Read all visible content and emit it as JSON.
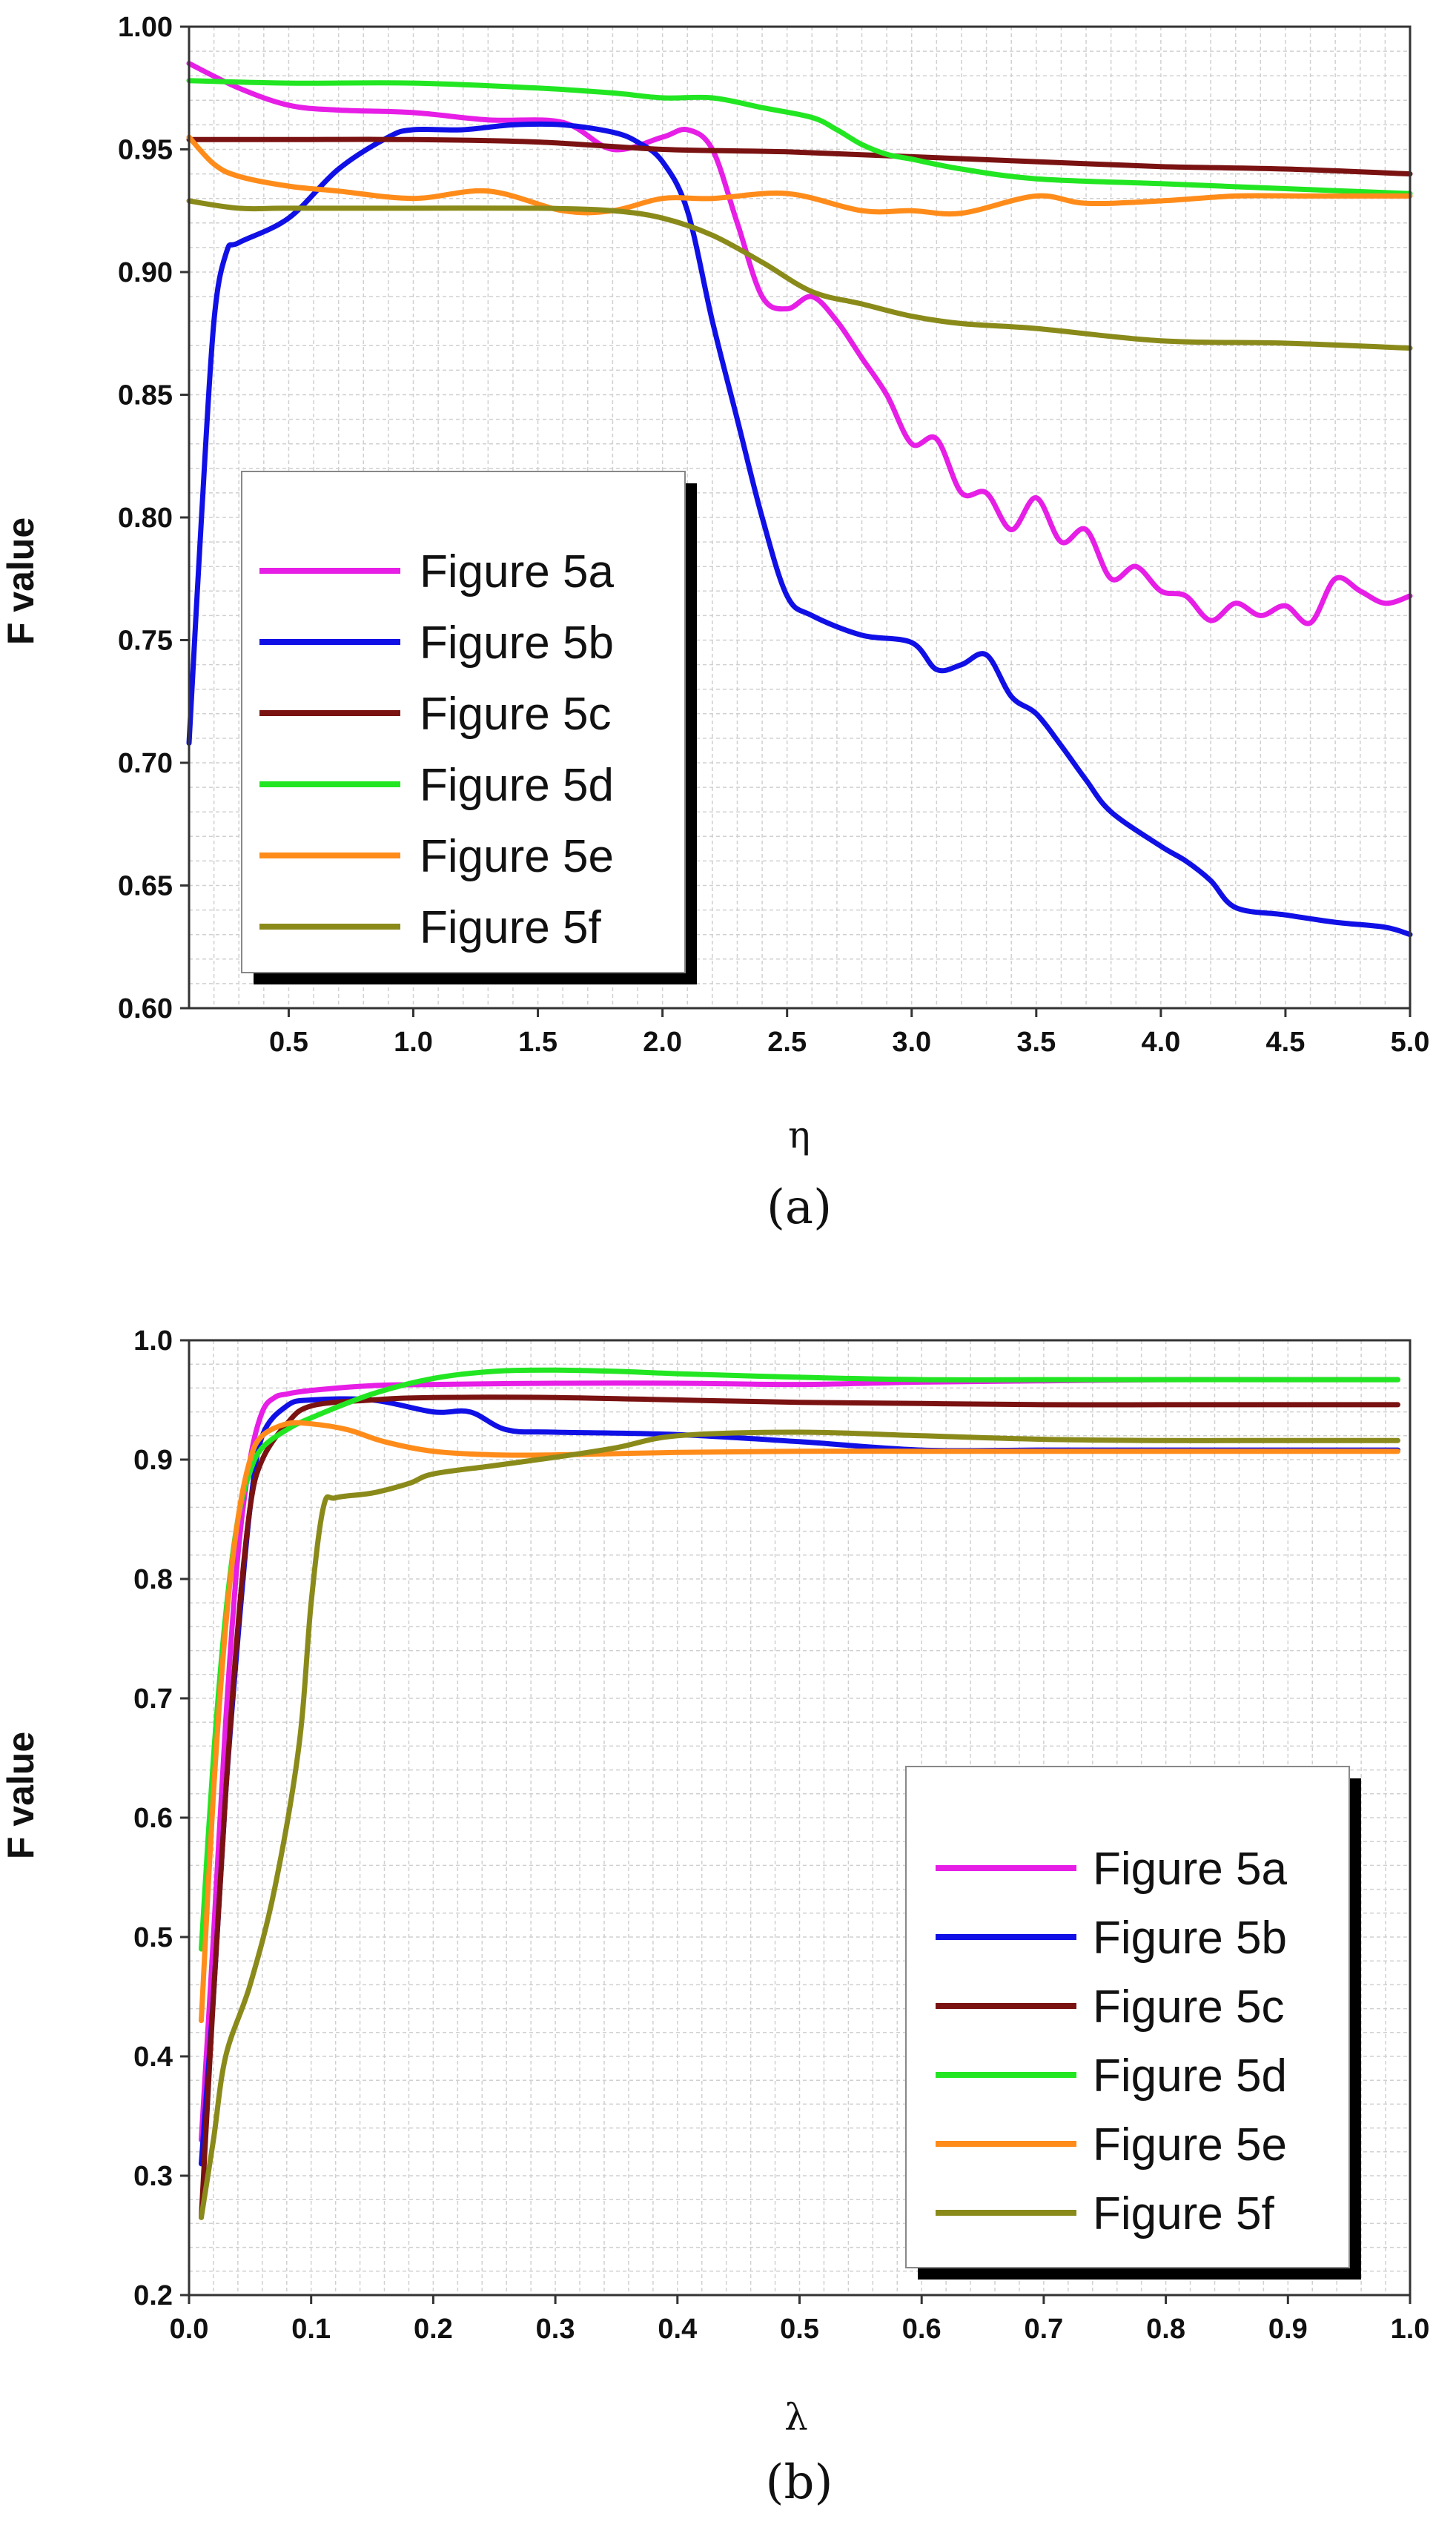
{
  "chart_data": [
    {
      "type": "line",
      "caption": "(a)",
      "xlabel": "η",
      "ylabel": "F value",
      "xlim": [
        0.1,
        5.0
      ],
      "ylim": [
        0.6,
        1.0
      ],
      "xticks": [
        0.5,
        1.0,
        1.5,
        2.0,
        2.5,
        3.0,
        3.5,
        4.0,
        4.5,
        5.0
      ],
      "xtick_labels": [
        "0.5",
        "1.0",
        "1.5",
        "2.0",
        "2.5",
        "3.0",
        "3.5",
        "4.0",
        "4.5",
        "5.0"
      ],
      "yticks": [
        0.6,
        0.65,
        0.7,
        0.75,
        0.8,
        0.85,
        0.9,
        0.95,
        1.0
      ],
      "ytick_labels": [
        "0.60",
        "0.65",
        "0.70",
        "0.75",
        "0.80",
        "0.85",
        "0.90",
        "0.95",
        "1.00"
      ],
      "grid": true,
      "legend_position": "center-left",
      "series": [
        {
          "name": "Figure 5a",
          "color": "#e61ee6",
          "x": [
            0.1,
            0.3,
            0.5,
            0.7,
            1.0,
            1.3,
            1.6,
            1.8,
            2.0,
            2.1,
            2.2,
            2.3,
            2.4,
            2.5,
            2.6,
            2.7,
            2.8,
            2.9,
            3.0,
            3.1,
            3.2,
            3.3,
            3.4,
            3.5,
            3.6,
            3.7,
            3.8,
            3.9,
            4.0,
            4.1,
            4.2,
            4.3,
            4.4,
            4.5,
            4.6,
            4.7,
            4.8,
            4.9,
            5.0
          ],
          "y": [
            0.985,
            0.975,
            0.968,
            0.966,
            0.965,
            0.962,
            0.961,
            0.95,
            0.955,
            0.958,
            0.95,
            0.92,
            0.89,
            0.885,
            0.89,
            0.88,
            0.865,
            0.85,
            0.83,
            0.832,
            0.81,
            0.81,
            0.795,
            0.808,
            0.79,
            0.795,
            0.775,
            0.78,
            0.77,
            0.768,
            0.758,
            0.765,
            0.76,
            0.764,
            0.757,
            0.775,
            0.77,
            0.765,
            0.768
          ]
        },
        {
          "name": "Figure 5b",
          "color": "#1010e6",
          "x": [
            0.1,
            0.15,
            0.2,
            0.25,
            0.3,
            0.5,
            0.7,
            0.9,
            1.0,
            1.2,
            1.4,
            1.6,
            1.8,
            1.9,
            2.0,
            2.1,
            2.2,
            2.3,
            2.4,
            2.5,
            2.6,
            2.8,
            3.0,
            3.1,
            3.2,
            3.3,
            3.4,
            3.5,
            3.6,
            3.7,
            3.8,
            4.0,
            4.1,
            4.2,
            4.3,
            4.5,
            4.7,
            4.9,
            5.0
          ],
          "y": [
            0.708,
            0.8,
            0.88,
            0.908,
            0.912,
            0.922,
            0.942,
            0.955,
            0.958,
            0.958,
            0.96,
            0.96,
            0.957,
            0.953,
            0.945,
            0.925,
            0.88,
            0.84,
            0.8,
            0.768,
            0.76,
            0.752,
            0.749,
            0.738,
            0.74,
            0.744,
            0.727,
            0.72,
            0.707,
            0.693,
            0.68,
            0.666,
            0.66,
            0.652,
            0.641,
            0.638,
            0.635,
            0.633,
            0.63
          ]
        },
        {
          "name": "Figure 5c",
          "color": "#7a1212",
          "x": [
            0.1,
            0.5,
            1.0,
            1.5,
            2.0,
            2.5,
            3.0,
            3.5,
            4.0,
            4.5,
            5.0
          ],
          "y": [
            0.954,
            0.954,
            0.954,
            0.953,
            0.95,
            0.949,
            0.947,
            0.945,
            0.943,
            0.942,
            0.94
          ]
        },
        {
          "name": "Figure 5d",
          "color": "#22e622",
          "x": [
            0.1,
            0.5,
            1.0,
            1.5,
            1.8,
            2.0,
            2.2,
            2.4,
            2.6,
            2.7,
            2.8,
            2.9,
            3.0,
            3.2,
            3.5,
            4.0,
            4.5,
            5.0
          ],
          "y": [
            0.978,
            0.977,
            0.977,
            0.975,
            0.973,
            0.971,
            0.971,
            0.967,
            0.963,
            0.958,
            0.952,
            0.948,
            0.946,
            0.942,
            0.938,
            0.936,
            0.934,
            0.932
          ]
        },
        {
          "name": "Figure 5e",
          "color": "#ff8c1a",
          "x": [
            0.1,
            0.2,
            0.3,
            0.5,
            0.7,
            1.0,
            1.3,
            1.6,
            1.8,
            2.0,
            2.2,
            2.5,
            2.8,
            3.0,
            3.2,
            3.5,
            3.7,
            4.0,
            4.3,
            4.6,
            5.0
          ],
          "y": [
            0.955,
            0.944,
            0.939,
            0.935,
            0.933,
            0.93,
            0.933,
            0.925,
            0.925,
            0.93,
            0.93,
            0.932,
            0.925,
            0.925,
            0.924,
            0.931,
            0.928,
            0.929,
            0.931,
            0.931,
            0.931
          ]
        },
        {
          "name": "Figure 5f",
          "color": "#8a8a1a",
          "x": [
            0.1,
            0.3,
            0.5,
            1.0,
            1.5,
            1.8,
            2.0,
            2.2,
            2.4,
            2.6,
            2.8,
            3.0,
            3.2,
            3.5,
            4.0,
            4.5,
            5.0
          ],
          "y": [
            0.929,
            0.926,
            0.926,
            0.926,
            0.926,
            0.925,
            0.922,
            0.915,
            0.904,
            0.892,
            0.887,
            0.882,
            0.879,
            0.877,
            0.872,
            0.871,
            0.869
          ]
        }
      ]
    },
    {
      "type": "line",
      "caption": "(b)",
      "xlabel": "λ",
      "ylabel": "F value",
      "xlim": [
        0.0,
        1.0
      ],
      "ylim": [
        0.2,
        1.0
      ],
      "xticks": [
        0.0,
        0.1,
        0.2,
        0.3,
        0.4,
        0.5,
        0.6,
        0.7,
        0.8,
        0.9,
        1.0
      ],
      "xtick_labels": [
        "0.0",
        "0.1",
        "0.2",
        "0.3",
        "0.4",
        "0.5",
        "0.6",
        "0.7",
        "0.8",
        "0.9",
        "1.0"
      ],
      "yticks": [
        0.2,
        0.3,
        0.4,
        0.5,
        0.6,
        0.7,
        0.8,
        0.9,
        1.0
      ],
      "ytick_labels": [
        "0.2",
        "0.3",
        "0.4",
        "0.5",
        "0.6",
        "0.7",
        "0.8",
        "0.9",
        "1.0"
      ],
      "grid": true,
      "legend_position": "bottom-right",
      "series": [
        {
          "name": "Figure 5a",
          "color": "#e61ee6",
          "x": [
            0.01,
            0.02,
            0.03,
            0.04,
            0.05,
            0.06,
            0.07,
            0.08,
            0.1,
            0.15,
            0.2,
            0.3,
            0.4,
            0.5,
            0.6,
            0.7,
            0.8,
            0.9,
            0.99
          ],
          "y": [
            0.33,
            0.5,
            0.68,
            0.82,
            0.9,
            0.94,
            0.952,
            0.955,
            0.958,
            0.962,
            0.963,
            0.964,
            0.964,
            0.963,
            0.965,
            0.966,
            0.967,
            0.967,
            0.967
          ]
        },
        {
          "name": "Figure 5b",
          "color": "#1010e6",
          "x": [
            0.01,
            0.02,
            0.03,
            0.04,
            0.05,
            0.06,
            0.08,
            0.1,
            0.15,
            0.2,
            0.23,
            0.26,
            0.3,
            0.4,
            0.5,
            0.6,
            0.7,
            0.8,
            0.9,
            0.99
          ],
          "y": [
            0.31,
            0.45,
            0.62,
            0.75,
            0.86,
            0.92,
            0.945,
            0.95,
            0.95,
            0.94,
            0.94,
            0.925,
            0.923,
            0.921,
            0.915,
            0.908,
            0.908,
            0.908,
            0.908,
            0.908
          ]
        },
        {
          "name": "Figure 5c",
          "color": "#7a1212",
          "x": [
            0.01,
            0.02,
            0.03,
            0.04,
            0.05,
            0.06,
            0.08,
            0.1,
            0.15,
            0.2,
            0.3,
            0.4,
            0.5,
            0.6,
            0.7,
            0.8,
            0.9,
            0.99
          ],
          "y": [
            0.265,
            0.45,
            0.62,
            0.76,
            0.86,
            0.9,
            0.93,
            0.945,
            0.95,
            0.952,
            0.952,
            0.95,
            0.948,
            0.947,
            0.946,
            0.946,
            0.946,
            0.946
          ]
        },
        {
          "name": "Figure 5d",
          "color": "#22e622",
          "x": [
            0.01,
            0.02,
            0.03,
            0.04,
            0.05,
            0.06,
            0.08,
            0.1,
            0.15,
            0.2,
            0.25,
            0.3,
            0.35,
            0.4,
            0.5,
            0.6,
            0.7,
            0.8,
            0.9,
            0.99
          ],
          "y": [
            0.49,
            0.65,
            0.77,
            0.85,
            0.89,
            0.91,
            0.925,
            0.935,
            0.955,
            0.968,
            0.974,
            0.975,
            0.974,
            0.972,
            0.969,
            0.967,
            0.967,
            0.967,
            0.967,
            0.967
          ]
        },
        {
          "name": "Figure 5e",
          "color": "#ff8c1a",
          "x": [
            0.01,
            0.02,
            0.03,
            0.04,
            0.05,
            0.06,
            0.08,
            0.1,
            0.13,
            0.16,
            0.2,
            0.25,
            0.3,
            0.4,
            0.5,
            0.6,
            0.7,
            0.8,
            0.9,
            0.99
          ],
          "y": [
            0.43,
            0.62,
            0.76,
            0.85,
            0.9,
            0.92,
            0.93,
            0.93,
            0.925,
            0.915,
            0.907,
            0.904,
            0.904,
            0.906,
            0.907,
            0.907,
            0.907,
            0.907,
            0.907,
            0.907
          ]
        },
        {
          "name": "Figure 5f",
          "color": "#8a8a1a",
          "x": [
            0.01,
            0.02,
            0.03,
            0.05,
            0.07,
            0.09,
            0.1,
            0.11,
            0.12,
            0.15,
            0.18,
            0.2,
            0.25,
            0.3,
            0.35,
            0.4,
            0.5,
            0.6,
            0.7,
            0.8,
            0.9,
            0.99
          ],
          "y": [
            0.265,
            0.33,
            0.4,
            0.46,
            0.54,
            0.66,
            0.78,
            0.86,
            0.868,
            0.872,
            0.88,
            0.888,
            0.895,
            0.902,
            0.91,
            0.92,
            0.923,
            0.92,
            0.917,
            0.916,
            0.916,
            0.916
          ]
        }
      ]
    }
  ]
}
